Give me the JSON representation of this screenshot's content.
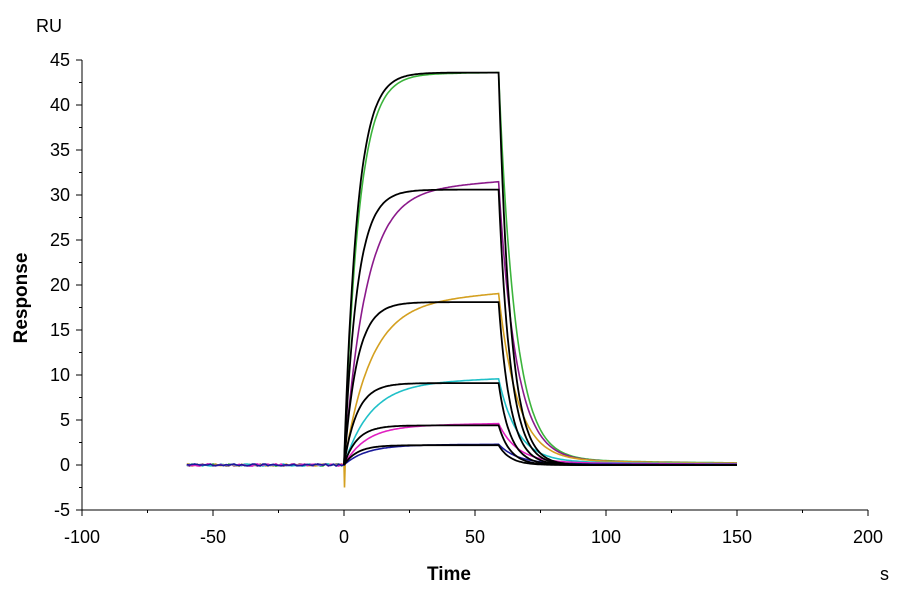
{
  "chart_data": {
    "type": "line",
    "title": "",
    "xlabel": "Time",
    "ylabel": "Response",
    "x_unit": "s",
    "y_unit": "RU",
    "xlim": [
      -100,
      200
    ],
    "ylim": [
      -5,
      45
    ],
    "x_ticks": [
      -100,
      -50,
      0,
      50,
      100,
      150,
      200
    ],
    "y_ticks": [
      -5,
      0,
      5,
      10,
      15,
      20,
      25,
      30,
      35,
      40,
      45
    ],
    "x_tick_labels": [
      "-100",
      "-50",
      "0",
      "50",
      "100",
      "150",
      "200"
    ],
    "y_tick_labels": [
      "-5",
      "0",
      "5",
      "10",
      "15",
      "20",
      "25",
      "30",
      "35",
      "40",
      "45"
    ],
    "grid": false,
    "legend": "none",
    "baseline_start": -60,
    "injection_start": 0,
    "injection_end": 59,
    "run_end": 150,
    "series": [
      {
        "color": "#3cb43c",
        "rmax": 43.6,
        "assoc_k": 0.18,
        "drift": 0.2,
        "diss_k": 0.16,
        "tail": 0.7,
        "tail_k": 0.012
      },
      {
        "color": "#8b1a8b",
        "rmax": 31.5,
        "assoc_k": 0.12,
        "drift": 1.2,
        "diss_k": 0.15,
        "tail": 0.6,
        "tail_k": 0.012
      },
      {
        "color": "#d4a020",
        "rmax": 19.1,
        "assoc_k": 0.1,
        "drift": 1.3,
        "diss_k": 0.14,
        "tail": 0.6,
        "tail_k": 0.012
      },
      {
        "color": "#20c0c8",
        "rmax": 9.6,
        "assoc_k": 0.1,
        "drift": 0.6,
        "diss_k": 0.14,
        "tail": 0.4,
        "tail_k": 0.012
      },
      {
        "color": "#e020c0",
        "rmax": 4.6,
        "assoc_k": 0.12,
        "drift": 0.3,
        "diss_k": 0.14,
        "tail": 0.3,
        "tail_k": 0.012
      },
      {
        "color": "#1a1a9a",
        "rmax": 2.3,
        "assoc_k": 0.12,
        "drift": 0.1,
        "diss_k": 0.14,
        "tail": 0.15,
        "tail_k": 0.012
      }
    ],
    "fits": [
      {
        "color": "#000000",
        "plateau": 43.6,
        "assoc_k": 0.2,
        "diss_k": 0.22
      },
      {
        "color": "#000000",
        "plateau": 30.6,
        "assoc_k": 0.2,
        "diss_k": 0.22
      },
      {
        "color": "#000000",
        "plateau": 18.1,
        "assoc_k": 0.2,
        "diss_k": 0.22
      },
      {
        "color": "#000000",
        "plateau": 9.1,
        "assoc_k": 0.2,
        "diss_k": 0.22
      },
      {
        "color": "#000000",
        "plateau": 4.4,
        "assoc_k": 0.2,
        "diss_k": 0.22
      },
      {
        "color": "#000000",
        "plateau": 2.2,
        "assoc_k": 0.2,
        "diss_k": 0.22
      }
    ]
  }
}
